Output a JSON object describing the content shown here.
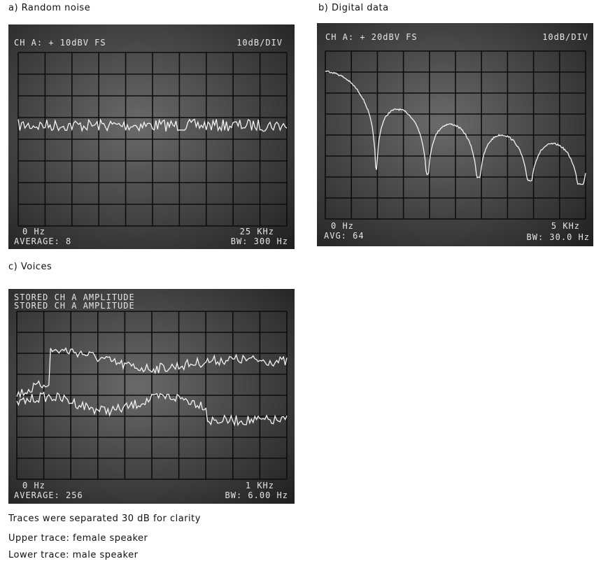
{
  "panels": [
    {
      "caption": "a) Random noise",
      "screen": {
        "top_left": "CH A: + 10dBV  FS",
        "top_right": "10dB/DIV",
        "start_freq": "0 Hz",
        "stop_freq": "25 KHz",
        "bottom_left": "AVERAGE:   8",
        "bottom_right": "BW: 300 Hz"
      }
    },
    {
      "caption": "b) Digital data",
      "screen": {
        "top_left": "CH A: + 20dBV  FS",
        "top_right": "10dB/DIV",
        "start_freq": "0 Hz",
        "stop_freq": "5 KHz",
        "bottom_left": "AVG:  64",
        "bottom_right": "BW: 30.0 Hz"
      }
    },
    {
      "caption": "c) Voices",
      "screen": {
        "top_line_1": "STORED CH A AMPLITUDE",
        "top_line_2": "STORED CH A AMPLITUDE",
        "start_freq": "0 Hz",
        "stop_freq": "1 KHz",
        "bottom_left": "AVERAGE: 256",
        "bottom_right": "BW: 6.00 Hz"
      }
    }
  ],
  "notes": [
    "Traces were separated 30 dB for clarity",
    "Upper trace: female speaker",
    "Lower trace: male speaker"
  ]
}
